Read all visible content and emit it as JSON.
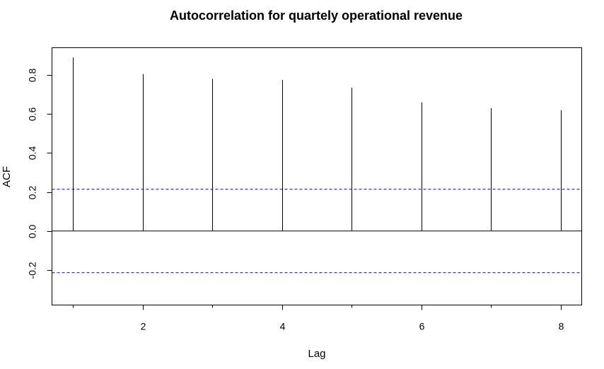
{
  "chart_data": {
    "type": "bar",
    "title": "Autocorrelation for quartely operational revenue",
    "xlabel": "Lag",
    "ylabel": "ACF",
    "x": [
      1,
      2,
      3,
      4,
      5,
      6,
      7,
      8
    ],
    "values": [
      0.89,
      0.805,
      0.78,
      0.775,
      0.735,
      0.66,
      0.63,
      0.62
    ],
    "confidence_bound": 0.214,
    "xlim": [
      0.7,
      8.3
    ],
    "ylim": [
      -0.38,
      0.94
    ],
    "xticks": [
      2,
      4,
      6,
      8
    ],
    "xtick_labels": [
      "2",
      "4",
      "6",
      "8"
    ],
    "xminor_ticks": [
      1,
      3,
      5,
      7
    ],
    "yticks": [
      -0.2,
      0.0,
      0.2,
      0.4,
      0.6,
      0.8
    ],
    "ytick_labels": [
      "-0.2",
      "0.0",
      "0.2",
      "0.4",
      "0.6",
      "0.8"
    ],
    "zero_line": true,
    "grid": false,
    "colors": {
      "bars": "#000000",
      "bounds": "#0000cc",
      "frame": "#000000"
    }
  }
}
